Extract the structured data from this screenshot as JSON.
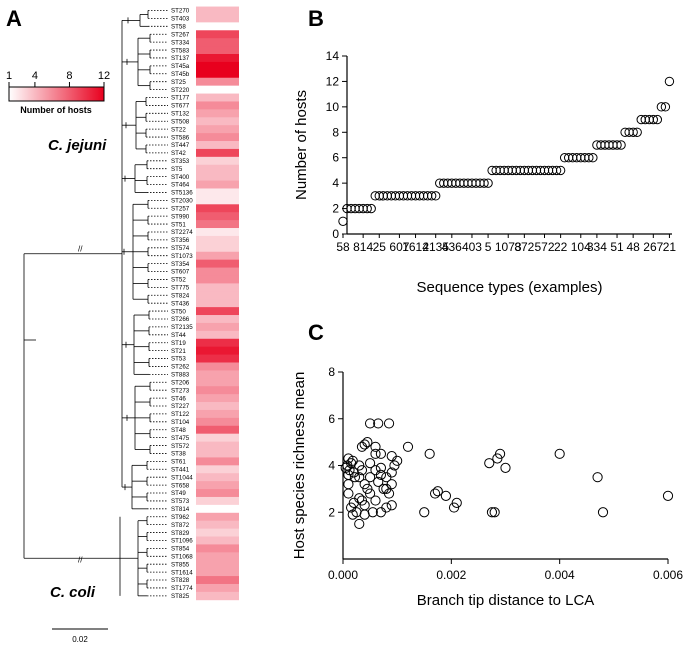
{
  "panels": {
    "a": "A",
    "b": "B",
    "c": "C"
  },
  "legend": {
    "title": "Number of hosts",
    "ticks": [
      1,
      4,
      8,
      12
    ],
    "color_low": "#ffffff",
    "color_high": "#e8001e"
  },
  "species": {
    "jejuni": "C. jejuni",
    "coli": "C. coli"
  },
  "scale_bar_label": "0.02",
  "chart_data": [
    {
      "type": "heatmap",
      "name": "panel-a",
      "rows": [
        "ST270",
        "ST403",
        "ST58",
        "ST267",
        "ST334",
        "ST583",
        "ST137",
        "ST45a",
        "ST45b",
        "ST25",
        "ST220",
        "ST177",
        "ST677",
        "ST132",
        "ST508",
        "ST22",
        "ST586",
        "ST447",
        "ST42",
        "ST353",
        "ST5",
        "ST400",
        "ST464",
        "ST5136",
        "ST2030",
        "ST257",
        "ST990",
        "ST51",
        "ST2274",
        "ST356",
        "ST574",
        "ST1073",
        "ST354",
        "ST607",
        "ST52",
        "ST775",
        "ST824",
        "ST436",
        "ST50",
        "ST266",
        "ST2135",
        "ST44",
        "ST19",
        "ST21",
        "ST53",
        "ST262",
        "ST883",
        "ST206",
        "ST273",
        "ST46",
        "ST227",
        "ST122",
        "ST104",
        "ST48",
        "ST475",
        "ST572",
        "ST38",
        "ST61",
        "ST441",
        "ST1044",
        "ST658",
        "ST49",
        "ST573",
        "ST814",
        "ST962",
        "ST872",
        "ST829",
        "ST1096",
        "ST854",
        "ST1068",
        "ST855",
        "ST1614",
        "ST828",
        "ST1774",
        "ST825"
      ],
      "values": [
        4,
        4,
        1,
        9,
        8,
        8,
        11,
        12,
        12,
        6,
        1,
        4,
        6,
        5,
        4,
        5,
        6,
        4,
        9,
        3,
        4,
        4,
        5,
        2,
        2,
        9,
        8,
        7,
        2,
        3,
        3,
        5,
        8,
        6,
        6,
        4,
        4,
        4,
        9,
        4,
        5,
        4,
        10,
        11,
        10,
        6,
        5,
        5,
        6,
        5,
        4,
        5,
        6,
        8,
        3,
        4,
        4,
        6,
        3,
        4,
        5,
        6,
        3,
        1,
        5,
        4,
        3,
        4,
        6,
        5,
        5,
        5,
        7,
        5,
        4
      ],
      "colorbar": {
        "min": 1,
        "max": 12,
        "ticks": [
          1,
          4,
          8,
          12
        ],
        "label": "Number of hosts"
      }
    },
    {
      "type": "scatter",
      "name": "panel-b",
      "xlabel": "Sequence types (examples)",
      "ylabel": "Number of hosts",
      "ylim": [
        0,
        14
      ],
      "yticks": [
        0,
        2,
        4,
        6,
        8,
        10,
        12,
        14
      ],
      "xtick_labels": [
        "58",
        "814",
        "25",
        "607",
        "1614",
        "2135",
        "436",
        "403",
        "5",
        "1073",
        "872",
        "572",
        "22",
        "104",
        "334",
        "51",
        "48",
        "267",
        "21"
      ],
      "values": [
        1,
        2,
        2,
        2,
        2,
        2,
        2,
        2,
        3,
        3,
        3,
        3,
        3,
        3,
        3,
        3,
        3,
        3,
        3,
        3,
        3,
        3,
        3,
        3,
        4,
        4,
        4,
        4,
        4,
        4,
        4,
        4,
        4,
        4,
        4,
        4,
        4,
        5,
        5,
        5,
        5,
        5,
        5,
        5,
        5,
        5,
        5,
        5,
        5,
        5,
        5,
        5,
        5,
        5,
        5,
        6,
        6,
        6,
        6,
        6,
        6,
        6,
        6,
        7,
        7,
        7,
        7,
        7,
        7,
        7,
        8,
        8,
        8,
        8,
        9,
        9,
        9,
        9,
        9,
        10,
        10,
        12
      ]
    },
    {
      "type": "scatter",
      "name": "panel-c",
      "xlabel": "Branch tip distance to LCA",
      "ylabel": "Host species richness mean",
      "xlim": [
        0,
        0.006
      ],
      "ylim": [
        0,
        8
      ],
      "xticks": [
        0.0,
        0.002,
        0.004,
        0.006
      ],
      "xtick_labels": [
        "0.000",
        "0.002",
        "0.004",
        "0.006"
      ],
      "yticks": [
        2,
        4,
        6,
        8
      ],
      "points": [
        [
          5e-05,
          3.9
        ],
        [
          0.0001,
          4.3
        ],
        [
          0.00012,
          3.8
        ],
        [
          0.00015,
          4.1
        ],
        [
          0.0002,
          3.7
        ],
        [
          8e-05,
          4.0
        ],
        [
          0.0001,
          3.6
        ],
        [
          0.00018,
          4.2
        ],
        [
          0.00022,
          3.5
        ],
        [
          0.0003,
          4.0
        ],
        [
          0.00035,
          3.8
        ],
        [
          0.0002,
          2.4
        ],
        [
          0.00025,
          2.0
        ],
        [
          0.0003,
          2.6
        ],
        [
          0.0004,
          3.2
        ],
        [
          0.00045,
          3.0
        ],
        [
          0.0005,
          2.8
        ],
        [
          0.00055,
          2.0
        ],
        [
          0.0006,
          2.5
        ],
        [
          0.00065,
          3.3
        ],
        [
          0.0007,
          3.6
        ],
        [
          0.00075,
          3.0
        ],
        [
          0.0008,
          2.2
        ],
        [
          0.00085,
          2.8
        ],
        [
          0.0009,
          3.2
        ],
        [
          0.00095,
          4.0
        ],
        [
          0.001,
          4.2
        ],
        [
          0.00035,
          4.8
        ],
        [
          0.0004,
          4.9
        ],
        [
          0.00045,
          5.0
        ],
        [
          0.0005,
          5.8
        ],
        [
          0.0006,
          4.8
        ],
        [
          0.00065,
          5.8
        ],
        [
          0.0007,
          4.5
        ],
        [
          0.00085,
          5.8
        ],
        [
          0.0009,
          4.4
        ],
        [
          0.0012,
          4.8
        ],
        [
          0.0003,
          1.5
        ],
        [
          0.00035,
          2.5
        ],
        [
          0.0004,
          1.9
        ],
        [
          0.0005,
          3.5
        ],
        [
          0.0006,
          3.8
        ],
        [
          0.0007,
          2.0
        ],
        [
          0.0008,
          3.5
        ],
        [
          0.0009,
          2.3
        ],
        [
          0.0001,
          3.2
        ],
        [
          0.00015,
          2.2
        ],
        [
          0.0003,
          3.5
        ],
        [
          0.0005,
          4.1
        ],
        [
          0.0006,
          4.5
        ],
        [
          0.0007,
          3.9
        ],
        [
          0.0008,
          3.0
        ],
        [
          0.0009,
          3.7
        ],
        [
          0.00018,
          1.9
        ],
        [
          0.0001,
          2.8
        ],
        [
          0.0004,
          2.3
        ],
        [
          0.0016,
          4.5
        ],
        [
          0.0017,
          2.8
        ],
        [
          0.00175,
          2.9
        ],
        [
          0.0015,
          2.0
        ],
        [
          0.0019,
          2.7
        ],
        [
          0.0021,
          2.4
        ],
        [
          0.00205,
          2.2
        ],
        [
          0.0027,
          4.1
        ],
        [
          0.00275,
          2.0
        ],
        [
          0.0028,
          2.0
        ],
        [
          0.0029,
          4.5
        ],
        [
          0.00285,
          4.3
        ],
        [
          0.003,
          3.9
        ],
        [
          0.004,
          4.5
        ],
        [
          0.0047,
          3.5
        ],
        [
          0.0048,
          2.0
        ],
        [
          0.006,
          2.7
        ]
      ]
    }
  ]
}
